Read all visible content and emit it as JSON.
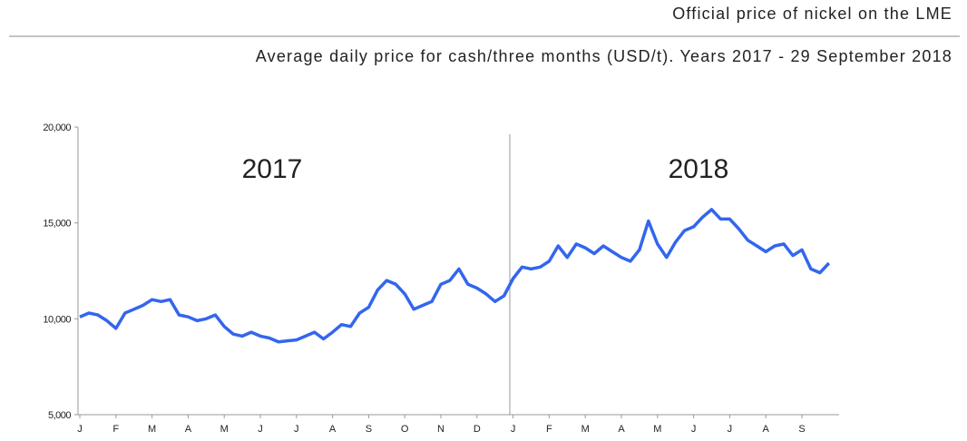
{
  "chart_data": {
    "type": "line",
    "title": "Official price of nickel on the LME",
    "subtitle": "Average daily price for cash/three months (USD/t). Years 2017 - 29 September 2018",
    "annotations": [
      "2017",
      "2018"
    ],
    "categories": [
      "J",
      null,
      null,
      null,
      "F",
      null,
      null,
      null,
      "M",
      null,
      null,
      null,
      "A",
      null,
      null,
      null,
      "M",
      null,
      null,
      null,
      "J",
      null,
      null,
      null,
      "J",
      null,
      null,
      null,
      "A",
      null,
      null,
      null,
      "S",
      null,
      null,
      null,
      "O",
      null,
      null,
      null,
      "N",
      null,
      null,
      null,
      "D",
      null,
      null,
      null,
      "J",
      null,
      null,
      null,
      "F",
      null,
      null,
      null,
      "M",
      null,
      null,
      null,
      "A",
      null,
      null,
      null,
      "M",
      null,
      null,
      null,
      "J",
      null,
      null,
      null,
      "J",
      null,
      null,
      null,
      "A",
      null,
      null,
      null,
      "S",
      null,
      null,
      null
    ],
    "series": [
      {
        "name": "Nickel",
        "color": "#3366ee",
        "values": [
          10100,
          10300,
          10200,
          9900,
          9500,
          10300,
          10500,
          10700,
          11000,
          10900,
          11000,
          10200,
          10100,
          9900,
          10000,
          10200,
          9600,
          9200,
          9100,
          9300,
          9100,
          9000,
          8800,
          8850,
          8900,
          9100,
          9300,
          8950,
          9300,
          9700,
          9600,
          10300,
          10600,
          11500,
          12000,
          11800,
          11300,
          10500,
          10700,
          10900,
          11800,
          12000,
          12600,
          11800,
          11600,
          11300,
          10900,
          11200,
          12100,
          12700,
          12600,
          12700,
          13000,
          13800,
          13200,
          13900,
          13700,
          13400,
          13800,
          13500,
          13200,
          13000,
          13600,
          15100,
          13900,
          13200,
          14000,
          14600,
          14800,
          15300,
          15700,
          15200,
          15200,
          14700,
          14100,
          13800,
          13500,
          13800,
          13900,
          13300,
          13600,
          12600,
          12400,
          12900
        ]
      }
    ],
    "ylim": [
      5000,
      20000
    ],
    "yticks": [
      {
        "value": 5000,
        "label": "5,000"
      },
      {
        "value": 10000,
        "label": "10,000"
      },
      {
        "value": 15000,
        "label": "15,000"
      },
      {
        "value": 20000,
        "label": "20,000"
      }
    ]
  }
}
